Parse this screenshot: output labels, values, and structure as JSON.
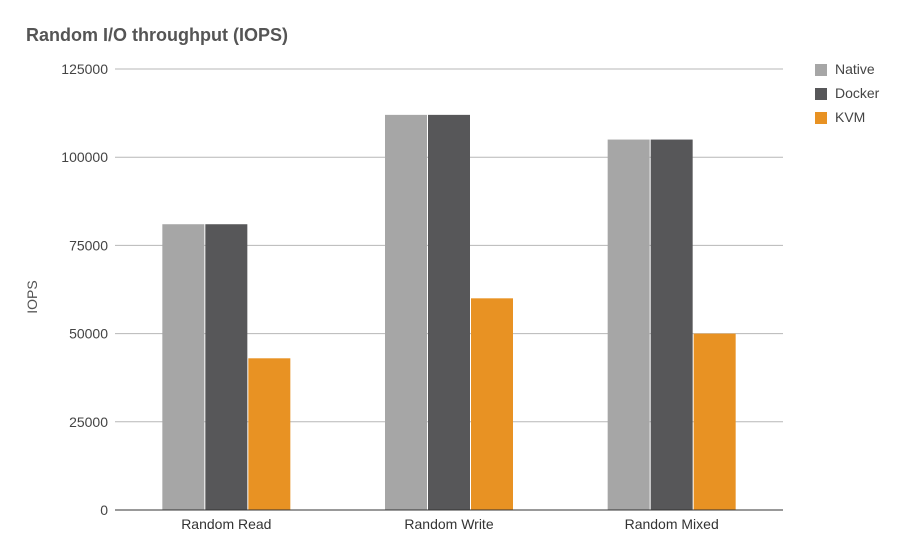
{
  "chart_data": {
    "type": "bar",
    "title": "Random I/O throughput (IOPS)",
    "xlabel": "",
    "ylabel": "IOPS",
    "categories": [
      "Random Read",
      "Random Write",
      "Random Mixed"
    ],
    "series": [
      {
        "name": "Native",
        "color": "#a6a6a6",
        "values": [
          81000,
          112000,
          105000
        ]
      },
      {
        "name": "Docker",
        "color": "#575759",
        "values": [
          81000,
          112000,
          105000
        ]
      },
      {
        "name": "KVM",
        "color": "#e89223",
        "values": [
          43000,
          60000,
          50000
        ]
      }
    ],
    "ylim": [
      0,
      125000
    ],
    "yticks": [
      "0",
      "25000",
      "50000",
      "75000",
      "100000",
      "125000"
    ],
    "grid": true,
    "legend": "right"
  }
}
